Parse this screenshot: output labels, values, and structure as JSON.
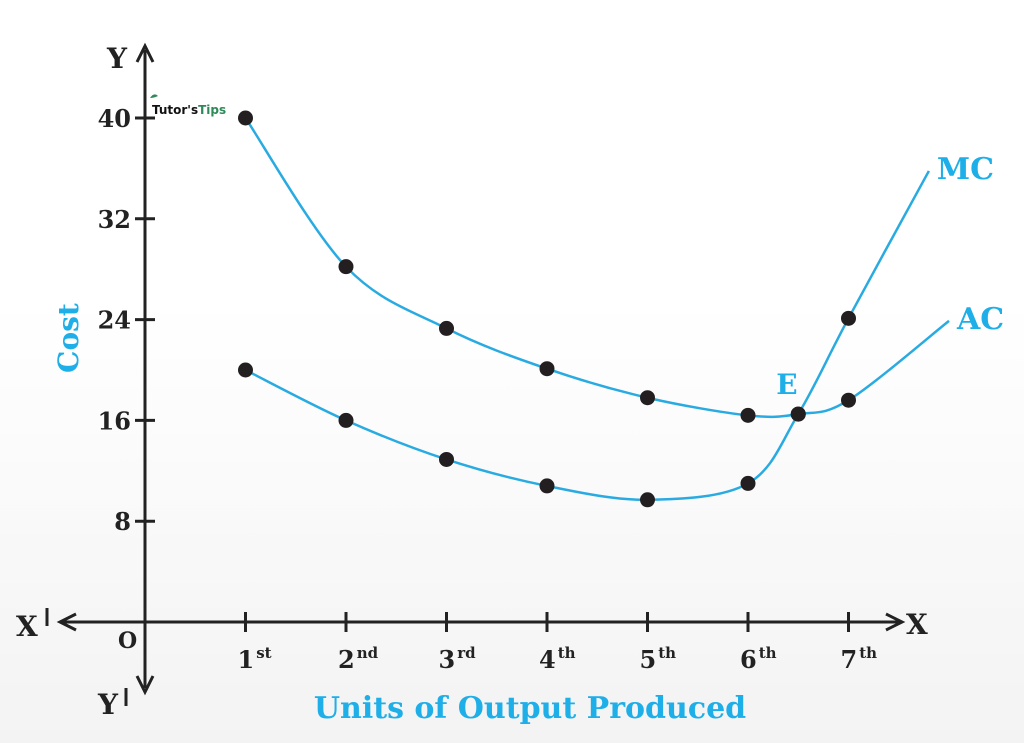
{
  "colors": {
    "curve": "#29abe2",
    "axis": "#222222",
    "point": "#231f20",
    "label_blue": "#1eaee8",
    "watermark_green": "#2e8b57"
  },
  "watermark": {
    "part1": "Tutor's",
    "part2": "Tips"
  },
  "chart_data": {
    "type": "line",
    "title": "",
    "xlabel": "Units of Output Produced",
    "ylabel": "Cost",
    "y_axis_letter": "Y",
    "y_axis_neg_letter": "Y",
    "x_axis_letter": "X",
    "x_axis_neg_letter": "X",
    "origin_label": "O",
    "ylim": [
      0,
      40
    ],
    "yticks": [
      "8",
      "16",
      "24",
      "32",
      "40"
    ],
    "ytick_values": [
      8,
      16,
      24,
      32,
      40
    ],
    "categories": [
      {
        "num": "1",
        "sup": "st"
      },
      {
        "num": "2",
        "sup": "nd"
      },
      {
        "num": "3",
        "sup": "rd"
      },
      {
        "num": "4",
        "sup": "th"
      },
      {
        "num": "5",
        "sup": "th"
      },
      {
        "num": "6",
        "sup": "th"
      },
      {
        "num": "7",
        "sup": "th"
      }
    ],
    "series": [
      {
        "name": "AC",
        "x": [
          1,
          2,
          3,
          4,
          5,
          6,
          6.5,
          7
        ],
        "values": [
          40,
          28.2,
          23.3,
          20.1,
          17.8,
          16.4,
          16.5,
          17.6
        ],
        "curve_end": [
          8,
          23.9
        ]
      },
      {
        "name": "MC",
        "x": [
          1,
          2,
          3,
          4,
          5,
          6,
          6.5,
          7
        ],
        "values": [
          20,
          16,
          12.9,
          10.8,
          9.7,
          11,
          16.5,
          24.1
        ],
        "curve_end": [
          7.8,
          35.8
        ]
      }
    ],
    "annotations": [
      {
        "label": "E",
        "x": 6.5,
        "y": 16.5
      }
    ]
  }
}
